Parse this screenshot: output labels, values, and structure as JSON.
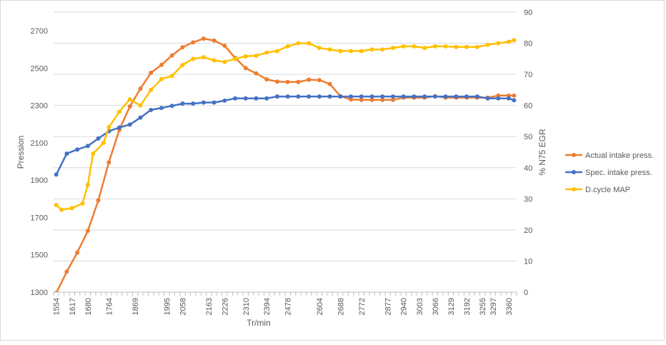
{
  "chart_data": {
    "type": "line",
    "title": "",
    "xlabel": "Tr/min",
    "ylabel": "Pression",
    "y2label": "% N75 EGR",
    "ylim": [
      1300,
      2800
    ],
    "y2lim": [
      0,
      90
    ],
    "yticks": [
      1300,
      1500,
      1700,
      1900,
      2100,
      2300,
      2500,
      2700
    ],
    "y2ticks": [
      0,
      10,
      20,
      30,
      40,
      50,
      60,
      70,
      80,
      90
    ],
    "grid": true,
    "legend": "right",
    "categories": [
      "1554",
      "1575",
      "1596",
      "1617",
      "1638",
      "1659",
      "1680",
      "1701",
      "1722",
      "1743",
      "1764",
      "1785",
      "1806",
      "1827",
      "1848",
      "1869",
      "1890",
      "1911",
      "1932",
      "1953",
      "1974",
      "1995",
      "2016",
      "2037",
      "2058",
      "2079",
      "2100",
      "2121",
      "2142",
      "2163",
      "2184",
      "2205",
      "2226",
      "2247",
      "2268",
      "2289",
      "2310",
      "2331",
      "2352",
      "2373",
      "2394",
      "2415",
      "2436",
      "2457",
      "2478",
      "2499",
      "2520",
      "2541",
      "2562",
      "2583",
      "2604",
      "2625",
      "2646",
      "2667",
      "2688",
      "2709",
      "2730",
      "2751",
      "2772",
      "2793",
      "2814",
      "2835",
      "2856",
      "2877",
      "2898",
      "2919",
      "2940",
      "2961",
      "2982",
      "3003",
      "3024",
      "3045",
      "3066",
      "3087",
      "3108",
      "3129",
      "3150",
      "3171",
      "3192",
      "3213",
      "3234",
      "3255",
      "3276",
      "3297",
      "3318",
      "3339",
      "3360",
      "3381"
    ],
    "xtick_labels": [
      "1554",
      "1617",
      "1680",
      "1764",
      "1869",
      "1995",
      "2058",
      "2163",
      "2226",
      "2310",
      "2394",
      "2478",
      "2604",
      "2688",
      "2772",
      "2877",
      "2940",
      "3003",
      "3066",
      "3129",
      "3192",
      "3255",
      "3297",
      "3360"
    ],
    "series": [
      {
        "name": "Actual intake press.",
        "color": "#ED7D31",
        "axis": "left",
        "points": [
          [
            "1554",
            1295
          ],
          [
            "1596",
            1410
          ],
          [
            "1638",
            1512
          ],
          [
            "1680",
            1628
          ],
          [
            "1722",
            1792
          ],
          [
            "1764",
            1995
          ],
          [
            "1806",
            2170
          ],
          [
            "1848",
            2295
          ],
          [
            "1890",
            2390
          ],
          [
            "1932",
            2475
          ],
          [
            "1974",
            2518
          ],
          [
            "2016",
            2568
          ],
          [
            "2058",
            2612
          ],
          [
            "2100",
            2638
          ],
          [
            "2142",
            2658
          ],
          [
            "2184",
            2648
          ],
          [
            "2226",
            2620
          ],
          [
            "2268",
            2555
          ],
          [
            "2310",
            2500
          ],
          [
            "2352",
            2472
          ],
          [
            "2394",
            2440
          ],
          [
            "2436",
            2428
          ],
          [
            "2478",
            2426
          ],
          [
            "2520",
            2426
          ],
          [
            "2562",
            2438
          ],
          [
            "2604",
            2436
          ],
          [
            "2646",
            2415
          ],
          [
            "2688",
            2350
          ],
          [
            "2730",
            2332
          ],
          [
            "2772",
            2330
          ],
          [
            "2814",
            2330
          ],
          [
            "2856",
            2330
          ],
          [
            "2898",
            2330
          ],
          [
            "2940",
            2342
          ],
          [
            "2982",
            2342
          ],
          [
            "3024",
            2342
          ],
          [
            "3066",
            2350
          ],
          [
            "3108",
            2342
          ],
          [
            "3150",
            2342
          ],
          [
            "3192",
            2342
          ],
          [
            "3234",
            2342
          ],
          [
            "3276",
            2342
          ],
          [
            "3318",
            2353
          ],
          [
            "3360",
            2353
          ],
          [
            "3381",
            2353
          ]
        ]
      },
      {
        "name": "Spec. intake press.",
        "color": "#4472C4",
        "axis": "left",
        "points": [
          [
            "1554",
            1930
          ],
          [
            "1596",
            2042
          ],
          [
            "1638",
            2064
          ],
          [
            "1680",
            2083
          ],
          [
            "1722",
            2123
          ],
          [
            "1764",
            2162
          ],
          [
            "1806",
            2182
          ],
          [
            "1848",
            2198
          ],
          [
            "1890",
            2235
          ],
          [
            "1932",
            2276
          ],
          [
            "1974",
            2287
          ],
          [
            "2016",
            2298
          ],
          [
            "2058",
            2310
          ],
          [
            "2100",
            2310
          ],
          [
            "2142",
            2316
          ],
          [
            "2184",
            2316
          ],
          [
            "2226",
            2326
          ],
          [
            "2268",
            2338
          ],
          [
            "2310",
            2338
          ],
          [
            "2352",
            2338
          ],
          [
            "2394",
            2338
          ],
          [
            "2436",
            2348
          ],
          [
            "2478",
            2348
          ],
          [
            "2520",
            2348
          ],
          [
            "2562",
            2348
          ],
          [
            "2604",
            2348
          ],
          [
            "2646",
            2348
          ],
          [
            "2688",
            2348
          ],
          [
            "2730",
            2348
          ],
          [
            "2772",
            2348
          ],
          [
            "2814",
            2348
          ],
          [
            "2856",
            2348
          ],
          [
            "2898",
            2348
          ],
          [
            "2940",
            2348
          ],
          [
            "2982",
            2348
          ],
          [
            "3024",
            2348
          ],
          [
            "3066",
            2348
          ],
          [
            "3108",
            2348
          ],
          [
            "3150",
            2348
          ],
          [
            "3192",
            2348
          ],
          [
            "3234",
            2348
          ],
          [
            "3276",
            2338
          ],
          [
            "3318",
            2338
          ],
          [
            "3360",
            2338
          ],
          [
            "3381",
            2328
          ]
        ]
      },
      {
        "name": "D.cycle MAP",
        "color": "#FFC000",
        "axis": "right",
        "points": [
          [
            "1554",
            28
          ],
          [
            "1575",
            26.5
          ],
          [
            "1617",
            27
          ],
          [
            "1659",
            28.5
          ],
          [
            "1680",
            34.5
          ],
          [
            "1701",
            44.5
          ],
          [
            "1743",
            48
          ],
          [
            "1764",
            53
          ],
          [
            "1806",
            58
          ],
          [
            "1848",
            62
          ],
          [
            "1890",
            60
          ],
          [
            "1932",
            65
          ],
          [
            "1974",
            68.5
          ],
          [
            "2016",
            69.5
          ],
          [
            "2058",
            73
          ],
          [
            "2100",
            75
          ],
          [
            "2142",
            75.5
          ],
          [
            "2184",
            74.5
          ],
          [
            "2226",
            74
          ],
          [
            "2268",
            75
          ],
          [
            "2310",
            75.8
          ],
          [
            "2352",
            76
          ],
          [
            "2394",
            77
          ],
          [
            "2436",
            77.5
          ],
          [
            "2478",
            79
          ],
          [
            "2520",
            80
          ],
          [
            "2562",
            80
          ],
          [
            "2604",
            78.5
          ],
          [
            "2646",
            78
          ],
          [
            "2688",
            77.5
          ],
          [
            "2730",
            77.5
          ],
          [
            "2772",
            77.5
          ],
          [
            "2814",
            78
          ],
          [
            "2856",
            78
          ],
          [
            "2898",
            78.5
          ],
          [
            "2940",
            79
          ],
          [
            "2982",
            79
          ],
          [
            "3024",
            78.5
          ],
          [
            "3066",
            79
          ],
          [
            "3108",
            79
          ],
          [
            "3150",
            78.8
          ],
          [
            "3192",
            78.8
          ],
          [
            "3234",
            78.8
          ],
          [
            "3276",
            79.5
          ],
          [
            "3318",
            80
          ],
          [
            "3360",
            80.5
          ],
          [
            "3381",
            81
          ]
        ]
      }
    ]
  }
}
